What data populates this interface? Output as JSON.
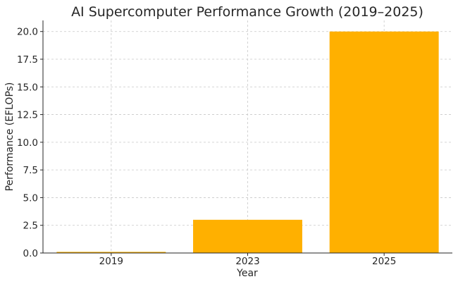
{
  "chart_data": {
    "type": "bar",
    "title": "AI Supercomputer Performance Growth (2019–2025)",
    "xlabel": "Year",
    "ylabel": "Performance (EFLOPs)",
    "categories": [
      "2019",
      "2023",
      "2025"
    ],
    "values": [
      0.1,
      3,
      20
    ],
    "ylim": [
      0,
      21
    ],
    "yticks": [
      "0.0",
      "2.5",
      "5.0",
      "7.5",
      "10.0",
      "12.5",
      "15.0",
      "17.5",
      "20.0"
    ],
    "grid": true,
    "legend": "none",
    "colors": {
      "bar": "#FFB000",
      "grid": "#c8c8c8",
      "axis": "#262626"
    }
  }
}
